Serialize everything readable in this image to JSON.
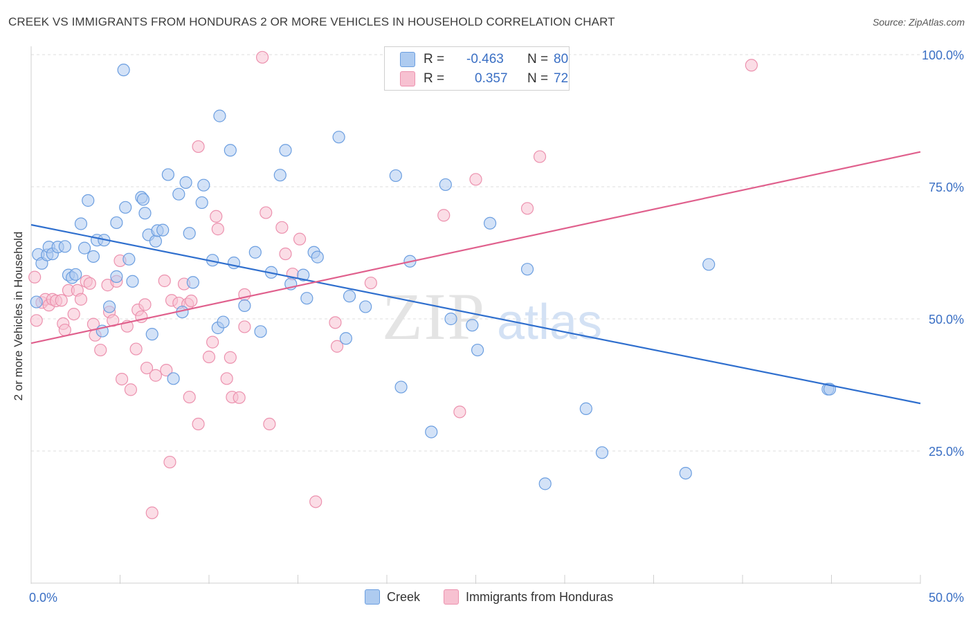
{
  "title": "CREEK VS IMMIGRANTS FROM HONDURAS 2 OR MORE VEHICLES IN HOUSEHOLD CORRELATION CHART",
  "source": "Source: ZipAtlas.com",
  "watermark": {
    "zip": "ZIP",
    "atlas": "atlas"
  },
  "legend": {
    "rows": [
      {
        "r_label": "R =",
        "r_value": "-0.463",
        "n_label": "N =",
        "n_value": "80"
      },
      {
        "r_label": "R =",
        "r_value": "0.357",
        "n_label": "N =",
        "n_value": "72"
      }
    ]
  },
  "colors": {
    "creek_fill": "#aecbf0",
    "creek_stroke": "#6b9ee0",
    "creek_line": "#2f6fce",
    "honduras_fill": "#f7c1d1",
    "honduras_stroke": "#ec91ae",
    "honduras_line": "#e0608d",
    "tick_label": "#3a6fc4",
    "grid": "#dedede"
  },
  "chart_data": {
    "type": "scatter",
    "title": "CREEK VS IMMIGRANTS FROM HONDURAS 2 OR MORE VEHICLES IN HOUSEHOLD CORRELATION CHART",
    "xlabel": "",
    "ylabel": "2 or more Vehicles in Household",
    "xlim": [
      0,
      50
    ],
    "ylim": [
      0,
      104
    ],
    "x_tick_labels": [
      "0.0%",
      "50.0%"
    ],
    "y_ticks": [
      25,
      50,
      75,
      100
    ],
    "y_tick_labels": [
      "25.0%",
      "50.0%",
      "75.0%",
      "100.0%"
    ],
    "grid": true,
    "legend_position": "top-center",
    "series": [
      {
        "name": "Creek",
        "r": -0.463,
        "n": 80,
        "trend": {
          "x0": 0,
          "y0": 67.8,
          "x1": 50,
          "y1": 34.0
        },
        "points": [
          [
            0.3,
            53.2
          ],
          [
            0.4,
            62.2
          ],
          [
            0.6,
            60.5
          ],
          [
            0.9,
            62.1
          ],
          [
            1.0,
            63.6
          ],
          [
            1.2,
            62.3
          ],
          [
            1.5,
            63.6
          ],
          [
            1.9,
            63.7
          ],
          [
            2.1,
            58.3
          ],
          [
            2.3,
            57.8
          ],
          [
            2.5,
            58.4
          ],
          [
            2.8,
            68.0
          ],
          [
            3.0,
            63.4
          ],
          [
            3.2,
            72.4
          ],
          [
            3.5,
            61.8
          ],
          [
            3.7,
            64.9
          ],
          [
            4.1,
            64.9
          ],
          [
            4.0,
            47.7
          ],
          [
            4.4,
            52.3
          ],
          [
            4.8,
            58.0
          ],
          [
            4.8,
            68.2
          ],
          [
            5.2,
            97.1
          ],
          [
            5.3,
            71.1
          ],
          [
            5.5,
            61.3
          ],
          [
            5.7,
            57.1
          ],
          [
            6.2,
            73.0
          ],
          [
            6.3,
            72.6
          ],
          [
            6.4,
            70.0
          ],
          [
            6.6,
            65.9
          ],
          [
            6.8,
            47.1
          ],
          [
            7.0,
            64.7
          ],
          [
            7.1,
            66.7
          ],
          [
            7.4,
            66.8
          ],
          [
            7.7,
            77.3
          ],
          [
            8.0,
            38.7
          ],
          [
            8.3,
            73.6
          ],
          [
            8.5,
            51.3
          ],
          [
            8.7,
            75.8
          ],
          [
            8.9,
            66.2
          ],
          [
            9.1,
            56.9
          ],
          [
            9.6,
            72.0
          ],
          [
            9.7,
            75.3
          ],
          [
            10.2,
            61.1
          ],
          [
            10.5,
            48.3
          ],
          [
            10.6,
            88.4
          ],
          [
            10.8,
            49.4
          ],
          [
            11.2,
            81.9
          ],
          [
            11.4,
            60.6
          ],
          [
            12.0,
            52.5
          ],
          [
            12.6,
            62.6
          ],
          [
            12.9,
            47.6
          ],
          [
            13.5,
            58.8
          ],
          [
            14.0,
            77.2
          ],
          [
            14.3,
            81.9
          ],
          [
            14.6,
            56.6
          ],
          [
            15.3,
            58.3
          ],
          [
            15.5,
            53.9
          ],
          [
            15.9,
            62.6
          ],
          [
            16.1,
            61.7
          ],
          [
            17.3,
            84.4
          ],
          [
            17.7,
            46.3
          ],
          [
            17.9,
            54.3
          ],
          [
            18.8,
            52.3
          ],
          [
            20.5,
            77.1
          ],
          [
            20.8,
            37.1
          ],
          [
            21.3,
            60.9
          ],
          [
            22.5,
            28.6
          ],
          [
            23.3,
            75.4
          ],
          [
            23.6,
            50.0
          ],
          [
            24.8,
            48.8
          ],
          [
            25.1,
            44.1
          ],
          [
            25.8,
            68.1
          ],
          [
            27.9,
            59.4
          ],
          [
            28.9,
            18.8
          ],
          [
            31.2,
            33.0
          ],
          [
            32.1,
            24.7
          ],
          [
            36.8,
            20.8
          ],
          [
            38.1,
            60.3
          ],
          [
            44.8,
            36.7
          ],
          [
            44.9,
            36.7
          ]
        ]
      },
      {
        "name": "Immigrants from Honduras",
        "r": 0.357,
        "n": 72,
        "trend": {
          "x0": 0,
          "y0": 45.4,
          "x1": 50,
          "y1": 81.6
        },
        "points": [
          [
            0.2,
            57.9
          ],
          [
            0.3,
            49.7
          ],
          [
            0.6,
            53.1
          ],
          [
            0.8,
            53.7
          ],
          [
            1.0,
            52.6
          ],
          [
            1.2,
            53.7
          ],
          [
            1.4,
            53.4
          ],
          [
            1.7,
            53.5
          ],
          [
            1.8,
            49.1
          ],
          [
            1.9,
            47.9
          ],
          [
            2.1,
            55.4
          ],
          [
            2.4,
            50.9
          ],
          [
            2.6,
            55.4
          ],
          [
            2.8,
            53.7
          ],
          [
            3.1,
            57.1
          ],
          [
            3.3,
            56.7
          ],
          [
            3.5,
            49.0
          ],
          [
            3.6,
            46.9
          ],
          [
            3.9,
            44.1
          ],
          [
            4.3,
            56.4
          ],
          [
            4.4,
            51.3
          ],
          [
            4.6,
            49.7
          ],
          [
            4.8,
            57.1
          ],
          [
            5.0,
            61.0
          ],
          [
            5.1,
            38.6
          ],
          [
            5.4,
            48.6
          ],
          [
            5.6,
            36.6
          ],
          [
            5.9,
            44.3
          ],
          [
            6.0,
            51.7
          ],
          [
            6.2,
            50.4
          ],
          [
            6.4,
            52.7
          ],
          [
            6.5,
            40.7
          ],
          [
            6.8,
            13.3
          ],
          [
            7.0,
            39.3
          ],
          [
            7.5,
            57.2
          ],
          [
            7.6,
            40.3
          ],
          [
            7.8,
            22.9
          ],
          [
            7.9,
            53.5
          ],
          [
            8.3,
            53.0
          ],
          [
            8.6,
            56.6
          ],
          [
            8.8,
            52.8
          ],
          [
            8.9,
            35.2
          ],
          [
            9.0,
            53.4
          ],
          [
            9.4,
            30.1
          ],
          [
            9.4,
            82.6
          ],
          [
            10.0,
            42.8
          ],
          [
            10.2,
            45.6
          ],
          [
            10.4,
            69.4
          ],
          [
            10.5,
            67.0
          ],
          [
            11.0,
            38.7
          ],
          [
            11.2,
            42.7
          ],
          [
            11.3,
            35.2
          ],
          [
            11.7,
            35.1
          ],
          [
            12.0,
            48.5
          ],
          [
            12.0,
            54.6
          ],
          [
            13.0,
            99.5
          ],
          [
            13.2,
            70.1
          ],
          [
            13.4,
            30.1
          ],
          [
            14.1,
            67.3
          ],
          [
            14.3,
            62.3
          ],
          [
            14.7,
            58.5
          ],
          [
            15.1,
            65.1
          ],
          [
            16.0,
            15.4
          ],
          [
            17.1,
            49.3
          ],
          [
            17.2,
            44.8
          ],
          [
            19.1,
            56.8
          ],
          [
            23.2,
            69.6
          ],
          [
            24.1,
            32.4
          ],
          [
            25.0,
            76.4
          ],
          [
            27.9,
            70.9
          ],
          [
            28.6,
            80.7
          ],
          [
            40.5,
            98.0
          ]
        ]
      }
    ]
  }
}
